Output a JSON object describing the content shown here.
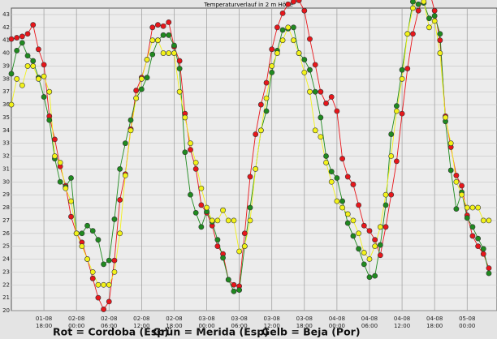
{
  "chart_data": {
    "type": "line",
    "title": "Temperaturverlauf in 2 m Höhe",
    "categories": [
      null,
      null,
      null,
      null,
      null,
      null,
      "01-08 18:00",
      null,
      null,
      null,
      null,
      null,
      "02-08 00:00",
      null,
      null,
      null,
      null,
      null,
      "02-08 06:00",
      null,
      null,
      null,
      null,
      null,
      "02-08 12:00",
      null,
      null,
      null,
      null,
      null,
      "02-08 18:00",
      null,
      null,
      null,
      null,
      null,
      "03-08 00:00",
      null,
      null,
      null,
      null,
      null,
      "03-08 06:00",
      null,
      null,
      null,
      null,
      null,
      "03-08 12:00",
      null,
      null,
      null,
      null,
      null,
      "03-08 18:00",
      null,
      null,
      null,
      null,
      null,
      "04-08 00:00",
      null,
      null,
      null,
      null,
      null,
      "04-08 06:00",
      null,
      null,
      null,
      null,
      null,
      "04-08 12:00",
      null,
      null,
      null,
      null,
      null,
      "04-08 18:00",
      null,
      null,
      null,
      null,
      null,
      "05-08 00:00",
      null,
      null,
      null,
      null
    ],
    "series": [
      {
        "name": "Rot = Cordoba (Esp)",
        "color": "#e8161b",
        "values": [
          41.1,
          41.2,
          41.3,
          41.5,
          42.2,
          40.3,
          39.1,
          35.1,
          33.3,
          31.2,
          29.7,
          27.3,
          26.0,
          25.3,
          24.0,
          22.5,
          21.0,
          20.1,
          20.7,
          23.9,
          28.6,
          30.6,
          34.1,
          37.1,
          38.1,
          39.5,
          42.0,
          42.2,
          42.1,
          42.4,
          40.5,
          39.4,
          35.3,
          32.5,
          31.0,
          28.2,
          27.6,
          26.6,
          25.0,
          24.4,
          22.4,
          22.0,
          21.9,
          26.0,
          30.4,
          33.7,
          36.0,
          37.7,
          40.3,
          42.0,
          43.1,
          43.8,
          44.0,
          44.1,
          43.3,
          41.1,
          39.1,
          37.0,
          36.1,
          36.6,
          35.5,
          31.8,
          30.4,
          29.8,
          28.2,
          26.6,
          26.2,
          25.5,
          24.3,
          26.5,
          29.0,
          31.6,
          35.3,
          38.8,
          41.5,
          43.3,
          44.4,
          44.9,
          43.3,
          41.0,
          35.1,
          32.7,
          30.5,
          29.7,
          27.4,
          25.8,
          25.0,
          24.4,
          23.3
        ]
      },
      {
        "name": "Grün = Merida (Esp)",
        "color": "#1f8a1f",
        "values": [
          38.4,
          40.2,
          40.8,
          39.8,
          39.4,
          38.1,
          36.6,
          34.8,
          31.8,
          30.0,
          29.6,
          30.3,
          26.0,
          26.0,
          26.6,
          26.2,
          25.5,
          23.6,
          23.9,
          27.1,
          31.0,
          33.0,
          34.8,
          36.5,
          37.2,
          38.1,
          39.9,
          41.0,
          41.4,
          41.4,
          40.6,
          38.8,
          32.3,
          29.0,
          27.6,
          26.5,
          27.7,
          26.9,
          25.5,
          24.1,
          22.4,
          21.5,
          21.6,
          25.0,
          28.0,
          31.0,
          34.0,
          35.5,
          38.5,
          40.2,
          41.8,
          41.9,
          42.0,
          40.0,
          39.5,
          38.7,
          37.0,
          35.0,
          32.0,
          30.8,
          30.3,
          28.5,
          26.8,
          25.8,
          24.8,
          23.6,
          22.6,
          22.7,
          25.1,
          28.2,
          33.7,
          35.9,
          38.7,
          41.5,
          44.0,
          43.8,
          43.9,
          42.7,
          42.9,
          41.5,
          34.7,
          30.9,
          27.9,
          29.2,
          27.2,
          26.5,
          25.6,
          24.8,
          22.9
        ]
      },
      {
        "name": "Gelb = Beja (Por)",
        "color": "#f2f21a",
        "values": [
          36.0,
          38.0,
          37.5,
          39.0,
          39.0,
          38.0,
          38.2,
          37.0,
          32.0,
          31.5,
          29.5,
          28.5,
          26.0,
          25.0,
          24.0,
          23.0,
          22.0,
          22.0,
          22.0,
          23.0,
          26.0,
          30.5,
          34.0,
          36.5,
          38.0,
          39.5,
          41.0,
          41.0,
          40.0,
          40.0,
          40.0,
          37.0,
          35.0,
          33.0,
          31.5,
          29.5,
          28.0,
          27.0,
          27.0,
          27.8,
          27.0,
          27.0,
          24.6,
          25.0,
          27.0,
          31.0,
          34.0,
          36.5,
          39.0,
          40.0,
          41.0,
          42.0,
          41.0,
          40.0,
          38.5,
          37.0,
          34.0,
          33.5,
          31.5,
          30.0,
          28.5,
          28.0,
          27.5,
          27.0,
          26.0,
          24.5,
          24.0,
          25.0,
          26.5,
          29.0,
          32.0,
          35.5,
          38.0,
          41.5,
          43.5,
          44.5,
          44.0,
          42.0,
          42.5,
          40.0,
          35.0,
          33.0,
          30.0,
          29.0,
          28.0,
          28.0,
          28.0,
          27.0,
          27.0
        ]
      }
    ],
    "ylim": [
      20,
      43.5
    ],
    "yticks": [
      20,
      21,
      22,
      23,
      24,
      25,
      26,
      27,
      28,
      29,
      30,
      31,
      32,
      33,
      34,
      35,
      36,
      37,
      38,
      39,
      40,
      41,
      42,
      43
    ],
    "grid": true
  }
}
